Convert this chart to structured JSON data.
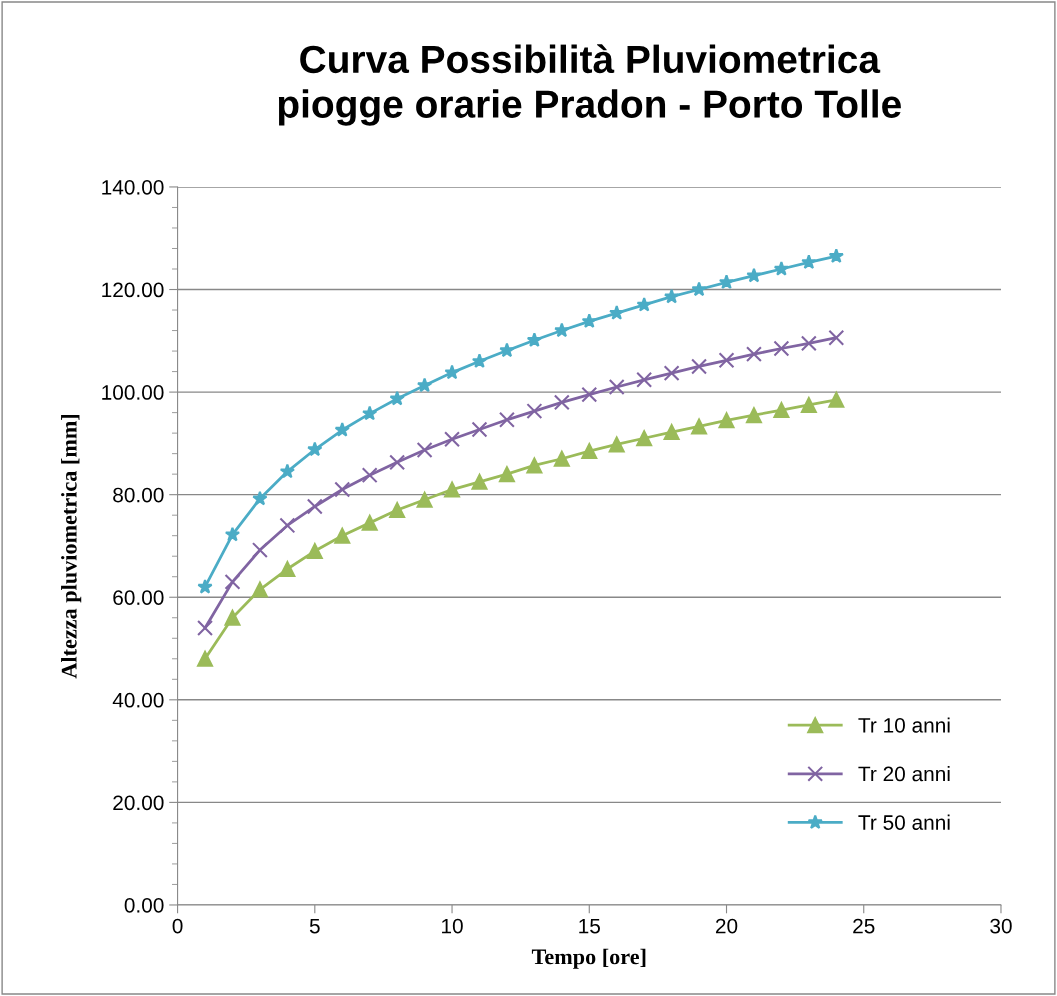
{
  "chart_data": {
    "type": "line",
    "title": "Curva Possibilità Pluviometrica\npiogge orarie Pradon - Porto Tolle",
    "xlabel": "Tempo [ore]",
    "ylabel": "Altezza pluviometrica [mm]",
    "x": [
      1,
      2,
      3,
      4,
      5,
      6,
      7,
      8,
      9,
      10,
      11,
      12,
      13,
      14,
      15,
      16,
      17,
      18,
      19,
      20,
      21,
      22,
      23,
      24
    ],
    "series": [
      {
        "name": "Tr 10 anni",
        "color": "#9bbb59",
        "marker": "triangle",
        "values": [
          48,
          56,
          61.5,
          65.5,
          69,
          72,
          74.5,
          77,
          79,
          81,
          82.5,
          84,
          85.7,
          87,
          88.5,
          89.8,
          91,
          92.2,
          93.3,
          94.5,
          95.5,
          96.5,
          97.5,
          98.5
        ]
      },
      {
        "name": "Tr 20 anni",
        "color": "#8064a2",
        "marker": "cross",
        "values": [
          54,
          63,
          69.2,
          74,
          77.7,
          81,
          83.8,
          86.3,
          88.7,
          90.8,
          92.7,
          94.6,
          96.3,
          98,
          99.5,
          101,
          102.4,
          103.7,
          105,
          106.2,
          107.4,
          108.5,
          109.5,
          110.6
        ]
      },
      {
        "name": "Tr 50 anni",
        "color": "#4bacc6",
        "marker": "star",
        "values": [
          62,
          72.2,
          79.2,
          84.5,
          88.8,
          92.6,
          95.8,
          98.7,
          101.3,
          103.8,
          106,
          108.1,
          110.1,
          112,
          113.8,
          115.4,
          117,
          118.6,
          120,
          121.4,
          122.7,
          124,
          125.3,
          126.5
        ]
      }
    ],
    "xlim": [
      0,
      30
    ],
    "xticks": [
      0,
      5,
      10,
      15,
      20,
      25,
      30
    ],
    "ylim": [
      0,
      140
    ],
    "yticks": [
      {
        "value": 0,
        "label": "0.00"
      },
      {
        "value": 20,
        "label": "20.00"
      },
      {
        "value": 40,
        "label": "40.00"
      },
      {
        "value": 60,
        "label": "60.00"
      },
      {
        "value": 80,
        "label": "80.00"
      },
      {
        "value": 100,
        "label": "100.00"
      },
      {
        "value": 120,
        "label": "120.00"
      },
      {
        "value": 140,
        "label": "140.00"
      }
    ],
    "grid": "y",
    "legend": "right",
    "line_style": "solid"
  }
}
